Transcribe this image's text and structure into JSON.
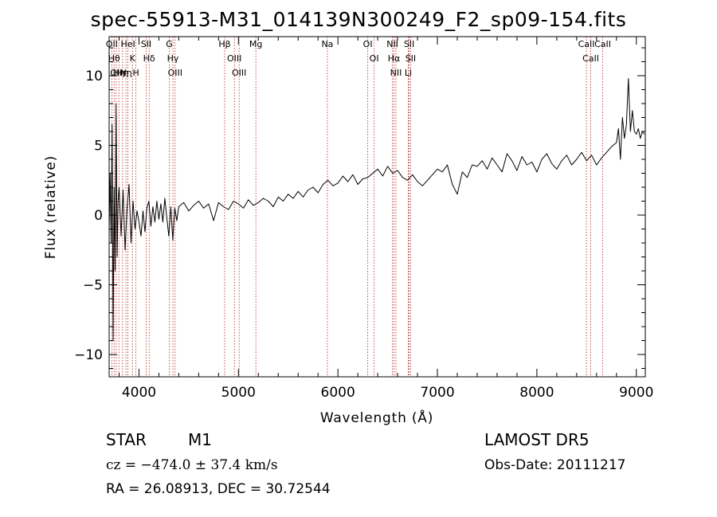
{
  "title": "spec-55913-M31_014139N300249_F2_sp09-154.fits",
  "info": {
    "object_type": "STAR",
    "object_class": "M1",
    "survey": "LAMOST DR5",
    "cz": "cz = −474.0 ± 37.4 km/s",
    "obs_date": "Obs-Date: 20111217",
    "ra_dec": "RA =  26.08913, DEC =  30.72544"
  },
  "colors": {
    "spectrum": "#000000",
    "lines": "#b22222",
    "axes": "#000000"
  },
  "chart_data": {
    "type": "line",
    "xlabel": "Wavelength (Å)",
    "ylabel": "Flux (relative)",
    "xlim": [
      3700,
      9090
    ],
    "ylim": [
      -11.6,
      12.8
    ],
    "xticks": [
      4000,
      5000,
      6000,
      7000,
      8000,
      9000
    ],
    "yticks": [
      -10,
      -5,
      0,
      5,
      10
    ],
    "grid": false,
    "line_markers": [
      {
        "wavelength": 3727,
        "labels": [
          "OII"
        ]
      },
      {
        "wavelength": 3750,
        "labels": [
          "Hθ"
        ]
      },
      {
        "wavelength": 3771,
        "labels": [
          "OII"
        ]
      },
      {
        "wavelength": 3798,
        "labels": [
          "Hη"
        ]
      },
      {
        "wavelength": 3835,
        "labels": [
          "Hη"
        ]
      },
      {
        "wavelength": 3869,
        "labels": [
          "Hη"
        ]
      },
      {
        "wavelength": 3889,
        "labels": [
          "HeI"
        ]
      },
      {
        "wavelength": 3934,
        "labels": [
          "K"
        ]
      },
      {
        "wavelength": 3969,
        "labels": [
          "H"
        ]
      },
      {
        "wavelength": 4072,
        "labels": [
          "SII"
        ]
      },
      {
        "wavelength": 4102,
        "labels": [
          "Hδ"
        ]
      },
      {
        "wavelength": 4305,
        "labels": [
          "G"
        ]
      },
      {
        "wavelength": 4341,
        "labels": [
          "Hγ"
        ]
      },
      {
        "wavelength": 4363,
        "labels": [
          "OIII"
        ]
      },
      {
        "wavelength": 4861,
        "labels": [
          "Hβ"
        ]
      },
      {
        "wavelength": 4959,
        "labels": [
          "OIII"
        ]
      },
      {
        "wavelength": 5007,
        "labels": [
          "OIII"
        ]
      },
      {
        "wavelength": 5175,
        "labels": [
          "Mg"
        ]
      },
      {
        "wavelength": 5894,
        "labels": [
          "Na"
        ]
      },
      {
        "wavelength": 6300,
        "labels": [
          "OI"
        ]
      },
      {
        "wavelength": 6364,
        "labels": [
          "OI"
        ]
      },
      {
        "wavelength": 6548,
        "labels": [
          "NII"
        ]
      },
      {
        "wavelength": 6563,
        "labels": [
          "Hα"
        ]
      },
      {
        "wavelength": 6583,
        "labels": [
          "NII"
        ]
      },
      {
        "wavelength": 6707,
        "labels": [
          "Li"
        ]
      },
      {
        "wavelength": 6716,
        "labels": [
          "SII"
        ]
      },
      {
        "wavelength": 6731,
        "labels": [
          "SII"
        ]
      },
      {
        "wavelength": 8498,
        "labels": [
          "CaII"
        ]
      },
      {
        "wavelength": 8542,
        "labels": [
          "CaII"
        ]
      },
      {
        "wavelength": 8662,
        "labels": [
          "CaII"
        ]
      }
    ],
    "series": [
      {
        "x": [
          3700,
          3710,
          3720,
          3730,
          3740,
          3750,
          3760,
          3770,
          3780,
          3790,
          3800,
          3820,
          3840,
          3860,
          3880,
          3900,
          3920,
          3940,
          3960,
          3980,
          4000,
          4020,
          4040,
          4060,
          4080,
          4100,
          4120,
          4140,
          4160,
          4180,
          4200,
          4220,
          4240,
          4260,
          4280,
          4300,
          4320,
          4340,
          4360,
          4380,
          4400,
          4450,
          4500,
          4550,
          4600,
          4650,
          4700,
          4750,
          4800,
          4850,
          4900,
          4950,
          5000,
          5050,
          5100,
          5150,
          5200,
          5250,
          5300,
          5350,
          5400,
          5450,
          5500,
          5550,
          5600,
          5650,
          5700,
          5750,
          5800,
          5850,
          5900,
          5950,
          6000,
          6050,
          6100,
          6150,
          6200,
          6250,
          6300,
          6350,
          6400,
          6450,
          6500,
          6550,
          6600,
          6650,
          6700,
          6750,
          6800,
          6850,
          6900,
          6950,
          7000,
          7050,
          7100,
          7150,
          7200,
          7250,
          7300,
          7350,
          7400,
          7450,
          7500,
          7550,
          7600,
          7650,
          7700,
          7750,
          7800,
          7850,
          7900,
          7950,
          8000,
          8050,
          8100,
          8150,
          8200,
          8250,
          8300,
          8350,
          8400,
          8450,
          8500,
          8550,
          8600,
          8650,
          8700,
          8750,
          8800,
          8820,
          8840,
          8860,
          8880,
          8900,
          8920,
          8940,
          8960,
          8980,
          9000,
          9020,
          9040,
          9060,
          9080
        ],
        "y": [
          -1.0,
          3.0,
          -2.0,
          6.5,
          -9.0,
          2.0,
          -4.0,
          8.0,
          -3.0,
          1.0,
          2.0,
          -1.5,
          1.8,
          -2.5,
          0.5,
          2.2,
          -2.0,
          1.0,
          -1.0,
          0.3,
          -0.5,
          -1.5,
          0.3,
          -1.2,
          0.5,
          1.0,
          -0.8,
          0.6,
          -0.5,
          1.0,
          -0.3,
          0.8,
          -0.5,
          1.2,
          -0.2,
          -1.5,
          0.6,
          -1.8,
          0.5,
          -0.4,
          0.6,
          0.9,
          0.3,
          0.7,
          1.0,
          0.5,
          0.8,
          -0.4,
          0.9,
          0.6,
          0.4,
          1.0,
          0.8,
          0.5,
          1.1,
          0.7,
          0.9,
          1.2,
          1.0,
          0.6,
          1.3,
          1.0,
          1.5,
          1.2,
          1.7,
          1.3,
          1.8,
          2.0,
          1.6,
          2.2,
          2.5,
          2.1,
          2.3,
          2.8,
          2.4,
          2.9,
          2.2,
          2.6,
          2.7,
          3.0,
          3.3,
          2.8,
          3.5,
          3.0,
          3.2,
          2.7,
          2.5,
          2.9,
          2.4,
          2.1,
          2.5,
          2.9,
          3.3,
          3.1,
          3.6,
          2.2,
          1.5,
          3.1,
          2.7,
          3.6,
          3.5,
          3.9,
          3.3,
          4.1,
          3.6,
          3.1,
          4.4,
          3.9,
          3.2,
          4.2,
          3.6,
          3.8,
          3.1,
          4.0,
          4.4,
          3.7,
          3.3,
          3.9,
          4.3,
          3.6,
          4.0,
          4.5,
          3.9,
          4.3,
          3.6,
          4.1,
          4.5,
          4.9,
          5.2,
          6.2,
          4.0,
          7.0,
          5.5,
          6.5,
          9.8,
          6.0,
          7.5,
          6.0,
          5.8,
          6.2,
          5.5,
          6.0,
          5.8
        ]
      }
    ]
  }
}
